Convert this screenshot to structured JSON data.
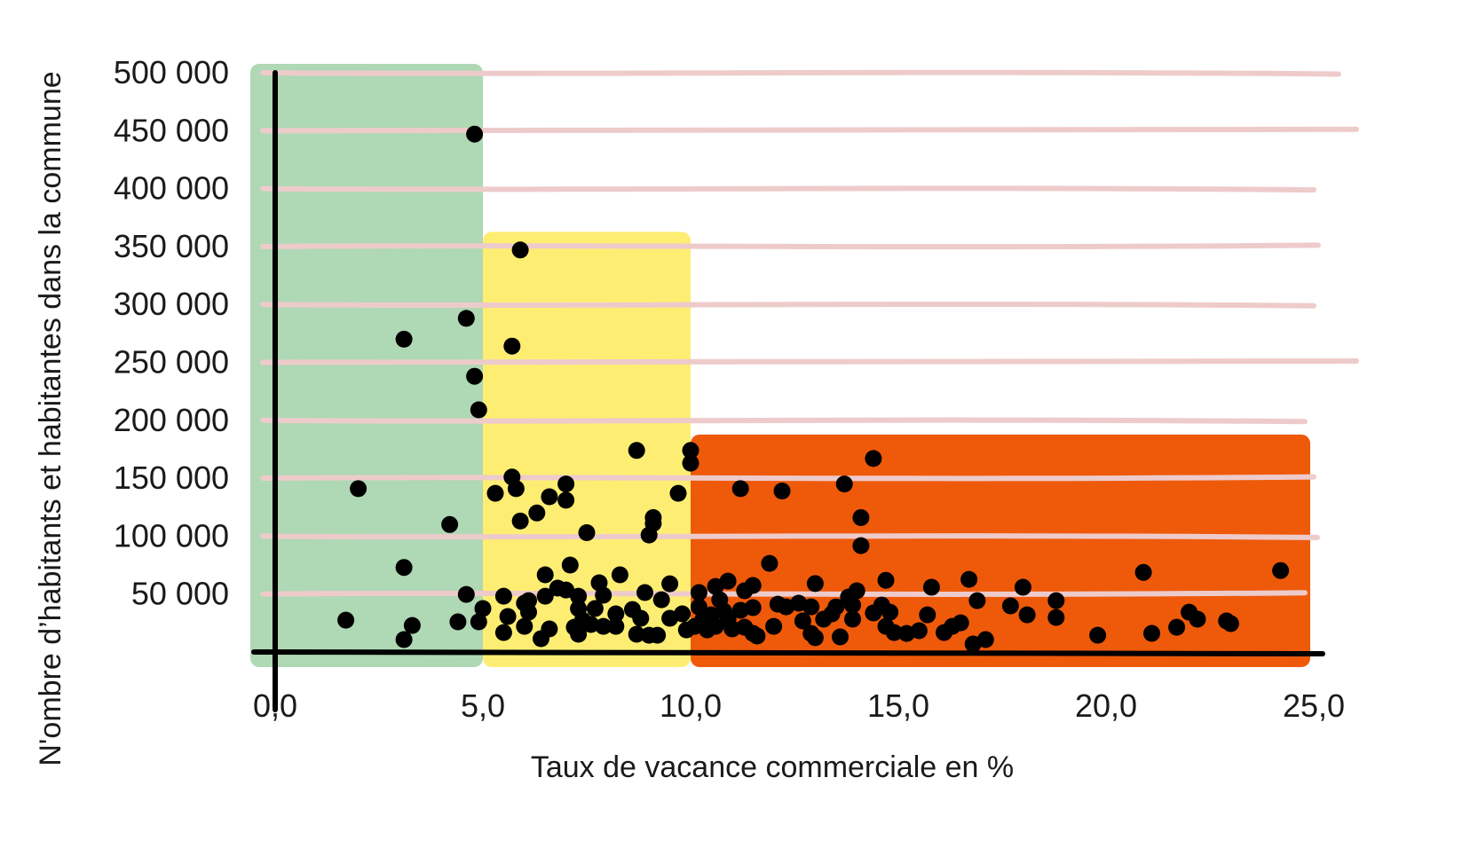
{
  "chart_data": {
    "type": "scatter",
    "title": "",
    "xlabel": "Taux de vacance commerciale en %",
    "ylabel": "N'ombre d’habitants et habitantes dans la commune",
    "xlim": [
      0,
      25
    ],
    "ylim": [
      0,
      500000
    ],
    "grid": true,
    "x_ticks": [
      "0,0",
      "5,0",
      "10,0",
      "15,0",
      "20,0",
      "25,0"
    ],
    "x_tick_values": [
      0,
      5,
      10,
      15,
      20,
      25
    ],
    "y_ticks": [
      "50 000",
      "100 000",
      "150 000",
      "200 000",
      "250 000",
      "300 000",
      "350 000",
      "400 000",
      "450 000",
      "500 000"
    ],
    "y_tick_values": [
      50000,
      100000,
      150000,
      200000,
      250000,
      300000,
      350000,
      400000,
      450000,
      500000
    ],
    "zones": [
      {
        "name": "green",
        "x_range": [
          0,
          5
        ],
        "y_max": 500000,
        "color": "#afd8b4"
      },
      {
        "name": "yellow",
        "x_range": [
          5,
          10
        ],
        "y_max": 355000,
        "color": "#fdee73"
      },
      {
        "name": "orange",
        "x_range": [
          10,
          25
        ],
        "y_max": 180000,
        "color": "#ee5a0a"
      }
    ],
    "colors": {
      "grid": "#eecbcb",
      "axis": "#000000",
      "point": "#000000"
    },
    "points": [
      [
        1.7,
        27500
      ],
      [
        2.0,
        141000
      ],
      [
        3.1,
        73000
      ],
      [
        3.1,
        10700
      ],
      [
        3.3,
        22900
      ],
      [
        3.1,
        270000
      ],
      [
        4.2,
        110000
      ],
      [
        4.4,
        26000
      ],
      [
        4.6,
        49700
      ],
      [
        4.6,
        288000
      ],
      [
        4.8,
        447000
      ],
      [
        4.8,
        238000
      ],
      [
        4.9,
        209000
      ],
      [
        4.9,
        26000
      ],
      [
        5.0,
        37500
      ],
      [
        5.3,
        137000
      ],
      [
        5.5,
        48200
      ],
      [
        5.5,
        16800
      ],
      [
        5.6,
        30600
      ],
      [
        5.7,
        264000
      ],
      [
        5.7,
        151000
      ],
      [
        5.8,
        141000
      ],
      [
        5.9,
        347000
      ],
      [
        5.9,
        113000
      ],
      [
        6.0,
        42100
      ],
      [
        6.0,
        22100
      ],
      [
        6.1,
        34400
      ],
      [
        6.1,
        44300
      ],
      [
        6.3,
        120000
      ],
      [
        6.4,
        11500
      ],
      [
        6.5,
        48200
      ],
      [
        6.5,
        66600
      ],
      [
        6.6,
        134000
      ],
      [
        6.6,
        19900
      ],
      [
        6.8,
        55100
      ],
      [
        7.0,
        53500
      ],
      [
        7.0,
        145000
      ],
      [
        7.0,
        131000
      ],
      [
        7.1,
        75000
      ],
      [
        7.2,
        21400
      ],
      [
        7.3,
        15300
      ],
      [
        7.3,
        37500
      ],
      [
        7.3,
        48200
      ],
      [
        7.4,
        27500
      ],
      [
        7.5,
        103000
      ],
      [
        7.6,
        23700
      ],
      [
        7.7,
        37500
      ],
      [
        7.8,
        59700
      ],
      [
        7.9,
        49000
      ],
      [
        7.9,
        22100
      ],
      [
        8.2,
        22100
      ],
      [
        8.2,
        32900
      ],
      [
        8.3,
        66600
      ],
      [
        8.6,
        36700
      ],
      [
        8.7,
        174000
      ],
      [
        8.7,
        15300
      ],
      [
        8.8,
        29100
      ],
      [
        8.9,
        51300
      ],
      [
        9.0,
        14500
      ],
      [
        9.0,
        101000
      ],
      [
        9.1,
        111000
      ],
      [
        9.1,
        116000
      ],
      [
        9.2,
        14500
      ],
      [
        9.3,
        45100
      ],
      [
        9.5,
        29100
      ],
      [
        9.5,
        58900
      ],
      [
        9.7,
        137000
      ],
      [
        9.8,
        32900
      ],
      [
        10.0,
        163000
      ],
      [
        10.0,
        174000
      ],
      [
        9.9,
        19100
      ],
      [
        10.1,
        22100
      ],
      [
        10.2,
        51300
      ],
      [
        10.2,
        38900
      ],
      [
        10.3,
        28300
      ],
      [
        10.4,
        19100
      ],
      [
        10.5,
        32100
      ],
      [
        10.6,
        56600
      ],
      [
        10.6,
        22100
      ],
      [
        10.7,
        45100
      ],
      [
        10.8,
        35200
      ],
      [
        10.9,
        61200
      ],
      [
        10.9,
        28300
      ],
      [
        11.0,
        19900
      ],
      [
        11.2,
        36000
      ],
      [
        11.2,
        141000
      ],
      [
        11.3,
        52800
      ],
      [
        11.3,
        21400
      ],
      [
        11.5,
        57400
      ],
      [
        11.5,
        38300
      ],
      [
        11.5,
        16100
      ],
      [
        11.6,
        13800
      ],
      [
        11.9,
        76500
      ],
      [
        12.0,
        22100
      ],
      [
        12.1,
        41300
      ],
      [
        12.2,
        139000
      ],
      [
        12.3,
        39000
      ],
      [
        12.6,
        42100
      ],
      [
        12.7,
        26800
      ],
      [
        12.9,
        39000
      ],
      [
        12.9,
        16000
      ],
      [
        13.0,
        59000
      ],
      [
        13.0,
        12300
      ],
      [
        13.2,
        28300
      ],
      [
        13.4,
        32900
      ],
      [
        13.5,
        38900
      ],
      [
        13.6,
        13000
      ],
      [
        13.7,
        145000
      ],
      [
        13.8,
        47400
      ],
      [
        13.9,
        28300
      ],
      [
        13.9,
        40500
      ],
      [
        14.0,
        52800
      ],
      [
        14.1,
        91800
      ],
      [
        14.1,
        116000
      ],
      [
        14.4,
        167000
      ],
      [
        14.4,
        33700
      ],
      [
        14.6,
        40500
      ],
      [
        14.7,
        61900
      ],
      [
        14.7,
        22100
      ],
      [
        14.8,
        34400
      ],
      [
        14.9,
        16800
      ],
      [
        15.2,
        16000
      ],
      [
        15.5,
        18400
      ],
      [
        15.7,
        32100
      ],
      [
        15.8,
        55900
      ],
      [
        16.1,
        16800
      ],
      [
        16.3,
        22100
      ],
      [
        16.5,
        25200
      ],
      [
        16.7,
        62700
      ],
      [
        16.8,
        6900
      ],
      [
        16.9,
        44300
      ],
      [
        17.1,
        10700
      ],
      [
        17.7,
        39800
      ],
      [
        18.0,
        55900
      ],
      [
        18.1,
        32100
      ],
      [
        18.8,
        44300
      ],
      [
        18.8,
        29800
      ],
      [
        19.8,
        14500
      ],
      [
        20.9,
        68700
      ],
      [
        21.1,
        16100
      ],
      [
        21.7,
        21400
      ],
      [
        22.0,
        34400
      ],
      [
        22.2,
        28300
      ],
      [
        22.9,
        26800
      ],
      [
        23.0,
        24500
      ],
      [
        24.2,
        70300
      ]
    ]
  }
}
